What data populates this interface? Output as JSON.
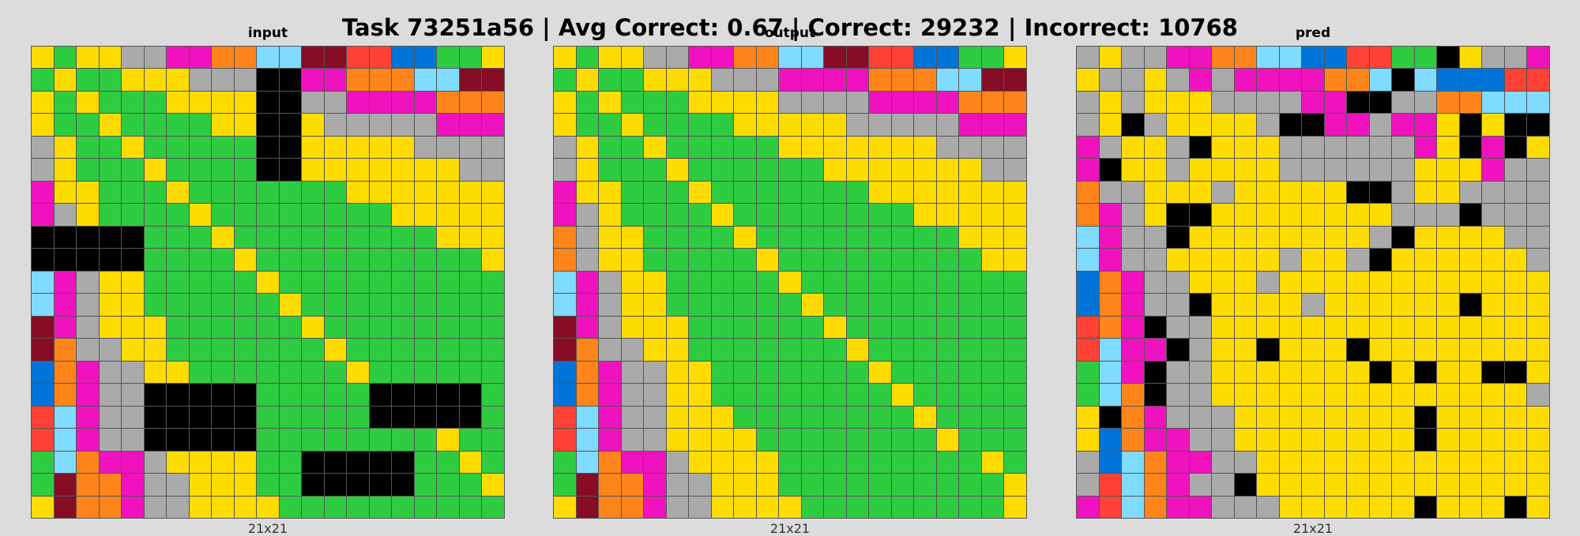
{
  "title": "Task 73251a56 | Avg Correct: 0.67 | Correct: 29232 | Incorrect: 10768",
  "palette": {
    "0": "#000000",
    "1": "#0074d9",
    "2": "#ff4136",
    "3": "#2ecc40",
    "4": "#ffdc00",
    "5": "#aaaaaa",
    "6": "#f012be",
    "7": "#ff851b",
    "8": "#7fdbff",
    "9": "#870c25"
  },
  "panels": [
    {
      "label": "input",
      "size_label": "21x21",
      "grid": [
        "434455667788992211334",
        "343344455500667778899",
        "434333444400556666777",
        "433433334400455555666",
        "543343333300444445555",
        "543334333300444444455",
        "644333433333334444444",
        "654333343333333344444",
        "000003334333333333444",
        "000003333433333333334",
        "865443333343333333333",
        "865443333334333333333",
        "965444333333433333333",
        "975544333333343333333",
        "176554433333334333333",
        "176550000033333000003",
        "286550000033333000003",
        "286550000033333333433",
        "387665444433000003343",
        "397765544433000003334",
        "497765544443333333333"
      ]
    },
    {
      "label": "output",
      "size_label": "21x21",
      "grid": [
        "434455667788992211334",
        "343344455566667778899",
        "434333444455556666777",
        "433433334444455555666",
        "543343333344444445555",
        "543334333333444444455",
        "644333433333334444444",
        "654333343333333344444",
        "754433334333333333444",
        "754433333433333333344",
        "865443333343333333333",
        "865443333334333333333",
        "965444333333433333333",
        "975544333333343333333",
        "176554433333334333333",
        "176554433333333433333",
        "286554443333333343333",
        "286554444333333334333",
        "387665444433333333343",
        "397765544433333333334",
        "497765544443333333334"
      ]
    },
    {
      "label": "pred",
      "size_label": "21x21",
      "grid": [
        "545566778811223304556",
        "455456566667780811122",
        "545444555566005577888",
        "540544445006656640400",
        "654450444555555640604",
        "604454444555555444655",
        "755444544444005445555",
        "765400444444445550555",
        "865504444444450444455",
        "865544444544504444445",
        "176554445444444444444",
        "176550444454444440444",
        "276055444444444444444",
        "286605440444044444444",
        "386055444444404044004",
        "387055444444444444445",
        "407655544444444044444",
        "417665544444444044444",
        "518766554444444444444",
        "528765504444444444444",
        "628766555444444044404"
      ]
    }
  ]
}
